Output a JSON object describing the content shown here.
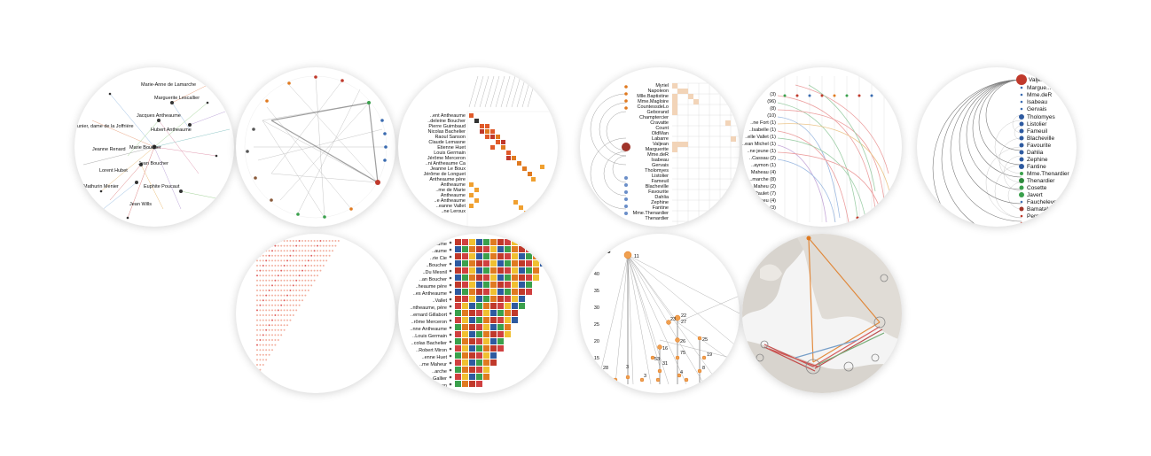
{
  "gallery": {
    "thumbnails": [
      {
        "name": "network-graph",
        "labels": [
          "Marie-Anne de Lamarche",
          "Marguerite Lescallier",
          "Jacques Antheaume",
          "Hubert Antheaume",
          "Jeanne Renard",
          "Marie Boucher",
          "Jean Boucher",
          "Lorent Hubet",
          "Mathurin Menier",
          "Euphite Poucaut",
          "Jean Wills",
          "..unier, dame de la Joffrière"
        ]
      },
      {
        "name": "circular-network"
      },
      {
        "name": "adjacency-matrix",
        "labels": [
          "..ent Antheaume",
          "..deleine Boucher",
          "Pierre Guimbaud",
          "Nicolas Bachelier",
          "Raoul Sanson",
          "Claude Lemasne",
          "Etienne Huet",
          "Louis Germain",
          "Jérôme Merceron",
          "..ni Antheaume Ca",
          "Jeanne Le Boux",
          "Jérôme de Longuet",
          "Antheaume père",
          "Antheaume",
          "..me de Marie",
          "Antheaume",
          "..e Antheaume",
          "..eanne Vallet",
          "..ne Leroux"
        ]
      },
      {
        "name": "arc-matrix",
        "labels": [
          "Myriel",
          "Napoleon",
          "Mlle.Baptistine",
          "Mme.Magloire",
          "CountessdeLo",
          "Geborand",
          "Champtercier",
          "Cravatte",
          "Count",
          "OldMan",
          "Labarre",
          "Valjean",
          "Marguerite",
          "Mme.deR",
          "Isabeau",
          "Gervais",
          "Tholomyes",
          "Listolier",
          "Fameuil",
          "Blacheville",
          "Favourite",
          "Dahlia",
          "Zephine",
          "Fantine",
          "Mme.Thenardier",
          "Thenardier"
        ]
      },
      {
        "name": "timeline-curves",
        "labels": [
          "(3)",
          "(96)",
          "(8)",
          "(10)",
          "..ne Fort (1)",
          "..Isabelle (1)",
          "..elle Vallet (1)",
          "..ean Michel (1)",
          "..ne jeune (1)",
          "..Cassau (2)",
          "..aymon (1)",
          "Maheau (4)",
          "..marche (8)",
          "Maheu (2)",
          "..a Paulet (7)",
          "Maheu (4)",
          "..marche (3)",
          "..Maheu (1)"
        ]
      },
      {
        "name": "arc-diagram",
        "labels": [
          "Valjean",
          "Margue...",
          "Mme.deR",
          "Isabeau",
          "Gervais",
          "Tholomyes",
          "Listolier",
          "Fameuil",
          "Blacheville",
          "Favourite",
          "Dahlia",
          "Zephine",
          "Fantine",
          "Mme.Thenardier",
          "Thenardier",
          "Cosette",
          "Javert",
          "Fauchelevent",
          "Bamatabois",
          "Perpetue",
          "Simplice"
        ]
      },
      {
        "name": "triangular-matrix"
      },
      {
        "name": "colored-matrix",
        "labels": [
          "..aume",
          "..aume",
          "..rie Cie",
          "..Boucher",
          "..Du Mesnil",
          "..an Boucher",
          "..heaume père",
          "..es Antheaume",
          "..Vallet",
          "..ntheaume, père",
          "..ernard Gillabort",
          "..rôme Merceron",
          "..nne Antheaume",
          "..Louis Germain",
          "..colas Bachelier",
          "..Robert Miron",
          "..enne Huet",
          "..me Maheur",
          "..arche",
          "..Gallier",
          "..on"
        ]
      },
      {
        "name": "degree-scatter",
        "title": "gree",
        "yticks": [
          "40",
          "35",
          "30",
          "25",
          "20",
          "15",
          "10",
          "5"
        ],
        "numbers": [
          "11",
          "23",
          "22",
          "27",
          "25",
          "26",
          "16",
          "75",
          "19",
          "31",
          "53",
          "3",
          "4",
          "8",
          "3",
          "28"
        ]
      },
      {
        "name": "geo-map"
      }
    ]
  }
}
